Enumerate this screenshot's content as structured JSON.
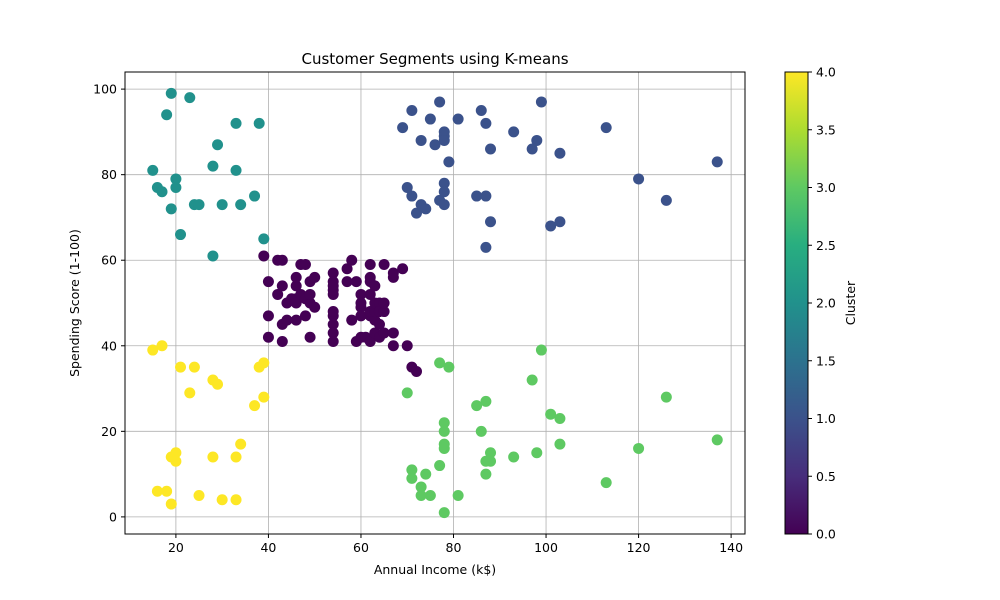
{
  "chart_data": {
    "type": "scatter",
    "title": "Customer Segments using K-means",
    "xlabel": "Annual Income (k$)",
    "ylabel": "Spending Score (1-100)",
    "xlim": [
      9,
      143
    ],
    "ylim": [
      -4,
      104
    ],
    "xticks": [
      20,
      40,
      60,
      80,
      100,
      120,
      140
    ],
    "yticks": [
      0,
      20,
      40,
      60,
      80,
      100
    ],
    "grid": true,
    "colormap": "viridis",
    "colorbar": {
      "label": "Cluster",
      "range": [
        0,
        4
      ],
      "ticks": [
        "0.0",
        "0.5",
        "1.0",
        "1.5",
        "2.0",
        "2.5",
        "3.0",
        "3.5",
        "4.0"
      ]
    },
    "series": [
      {
        "cluster": 0,
        "color": "#440154",
        "points": [
          [
            39,
            61
          ],
          [
            40,
            55
          ],
          [
            40,
            47
          ],
          [
            40,
            42
          ],
          [
            42,
            52
          ],
          [
            42,
            60
          ],
          [
            43,
            54
          ],
          [
            43,
            41
          ],
          [
            43,
            45
          ],
          [
            43,
            60
          ],
          [
            44,
            50
          ],
          [
            44,
            46
          ],
          [
            45,
            51
          ],
          [
            46,
            46
          ],
          [
            46,
            54
          ],
          [
            46,
            56
          ],
          [
            46,
            51
          ],
          [
            46,
            50
          ],
          [
            47,
            52
          ],
          [
            47,
            59
          ],
          [
            48,
            51
          ],
          [
            48,
            47
          ],
          [
            48,
            59
          ],
          [
            49,
            50
          ],
          [
            49,
            55
          ],
          [
            49,
            42
          ],
          [
            49,
            52
          ],
          [
            50,
            49
          ],
          [
            50,
            56
          ],
          [
            54,
            57
          ],
          [
            54,
            55
          ],
          [
            54,
            52
          ],
          [
            54,
            53
          ],
          [
            54,
            54
          ],
          [
            54,
            47
          ],
          [
            54,
            48
          ],
          [
            54,
            45
          ],
          [
            54,
            43
          ],
          [
            54,
            41
          ],
          [
            57,
            58
          ],
          [
            57,
            55
          ],
          [
            58,
            60
          ],
          [
            58,
            46
          ],
          [
            59,
            55
          ],
          [
            59,
            41
          ],
          [
            60,
            52
          ],
          [
            60,
            50
          ],
          [
            60,
            42
          ],
          [
            60,
            49
          ],
          [
            60,
            47
          ],
          [
            61,
            42
          ],
          [
            62,
            59
          ],
          [
            62,
            55
          ],
          [
            62,
            56
          ],
          [
            62,
            41
          ],
          [
            62,
            47
          ],
          [
            62,
            52
          ],
          [
            62,
            48
          ],
          [
            63,
            46
          ],
          [
            63,
            43
          ],
          [
            63,
            48
          ],
          [
            63,
            50
          ],
          [
            63,
            54
          ],
          [
            64,
            50
          ],
          [
            64,
            42
          ],
          [
            64,
            45
          ],
          [
            64,
            48
          ],
          [
            65,
            59
          ],
          [
            65,
            43
          ],
          [
            65,
            48
          ],
          [
            65,
            50
          ],
          [
            67,
            56
          ],
          [
            67,
            57
          ],
          [
            67,
            43
          ],
          [
            67,
            40
          ],
          [
            69,
            58
          ],
          [
            70,
            40
          ],
          [
            71,
            35
          ],
          [
            72,
            34
          ]
        ]
      },
      {
        "cluster": 1,
        "color": "#3b528b",
        "points": [
          [
            69,
            91
          ],
          [
            70,
            77
          ],
          [
            71,
            95
          ],
          [
            71,
            75
          ],
          [
            72,
            71
          ],
          [
            73,
            88
          ],
          [
            73,
            73
          ],
          [
            74,
            72
          ],
          [
            75,
            93
          ],
          [
            76,
            87
          ],
          [
            77,
            97
          ],
          [
            77,
            74
          ],
          [
            78,
            90
          ],
          [
            78,
            89
          ],
          [
            78,
            88
          ],
          [
            78,
            78
          ],
          [
            78,
            76
          ],
          [
            78,
            73
          ],
          [
            79,
            83
          ],
          [
            81,
            93
          ],
          [
            85,
            75
          ],
          [
            86,
            95
          ],
          [
            87,
            92
          ],
          [
            87,
            75
          ],
          [
            87,
            63
          ],
          [
            88,
            86
          ],
          [
            88,
            69
          ],
          [
            93,
            90
          ],
          [
            97,
            86
          ],
          [
            98,
            88
          ],
          [
            99,
            97
          ],
          [
            101,
            68
          ],
          [
            103,
            85
          ],
          [
            103,
            69
          ],
          [
            113,
            91
          ],
          [
            120,
            79
          ],
          [
            126,
            74
          ],
          [
            137,
            83
          ]
        ]
      },
      {
        "cluster": 2,
        "color": "#21918c",
        "points": [
          [
            15,
            81
          ],
          [
            16,
            77
          ],
          [
            17,
            76
          ],
          [
            18,
            94
          ],
          [
            19,
            72
          ],
          [
            19,
            99
          ],
          [
            20,
            77
          ],
          [
            20,
            79
          ],
          [
            21,
            66
          ],
          [
            23,
            98
          ],
          [
            24,
            73
          ],
          [
            25,
            73
          ],
          [
            28,
            82
          ],
          [
            28,
            61
          ],
          [
            29,
            87
          ],
          [
            30,
            73
          ],
          [
            33,
            92
          ],
          [
            33,
            81
          ],
          [
            34,
            73
          ],
          [
            37,
            75
          ],
          [
            38,
            92
          ],
          [
            39,
            65
          ]
        ]
      },
      {
        "cluster": 3,
        "color": "#5ec962",
        "points": [
          [
            70,
            29
          ],
          [
            71,
            11
          ],
          [
            71,
            9
          ],
          [
            73,
            5
          ],
          [
            73,
            7
          ],
          [
            74,
            10
          ],
          [
            75,
            5
          ],
          [
            77,
            12
          ],
          [
            77,
            36
          ],
          [
            78,
            22
          ],
          [
            78,
            20
          ],
          [
            78,
            17
          ],
          [
            78,
            16
          ],
          [
            78,
            1
          ],
          [
            79,
            35
          ],
          [
            81,
            5
          ],
          [
            85,
            26
          ],
          [
            86,
            20
          ],
          [
            87,
            27
          ],
          [
            87,
            13
          ],
          [
            87,
            10
          ],
          [
            88,
            13
          ],
          [
            88,
            15
          ],
          [
            93,
            14
          ],
          [
            97,
            32
          ],
          [
            98,
            15
          ],
          [
            99,
            39
          ],
          [
            101,
            24
          ],
          [
            103,
            23
          ],
          [
            103,
            17
          ],
          [
            113,
            8
          ],
          [
            120,
            16
          ],
          [
            126,
            28
          ],
          [
            137,
            18
          ]
        ]
      },
      {
        "cluster": 4,
        "color": "#fde725",
        "points": [
          [
            15,
            39
          ],
          [
            16,
            6
          ],
          [
            17,
            40
          ],
          [
            18,
            6
          ],
          [
            19,
            3
          ],
          [
            19,
            14
          ],
          [
            20,
            15
          ],
          [
            20,
            13
          ],
          [
            21,
            35
          ],
          [
            23,
            29
          ],
          [
            24,
            35
          ],
          [
            25,
            5
          ],
          [
            28,
            14
          ],
          [
            28,
            32
          ],
          [
            29,
            31
          ],
          [
            30,
            4
          ],
          [
            33,
            4
          ],
          [
            33,
            14
          ],
          [
            34,
            17
          ],
          [
            37,
            26
          ],
          [
            38,
            35
          ],
          [
            39,
            36
          ],
          [
            39,
            28
          ]
        ]
      }
    ]
  }
}
